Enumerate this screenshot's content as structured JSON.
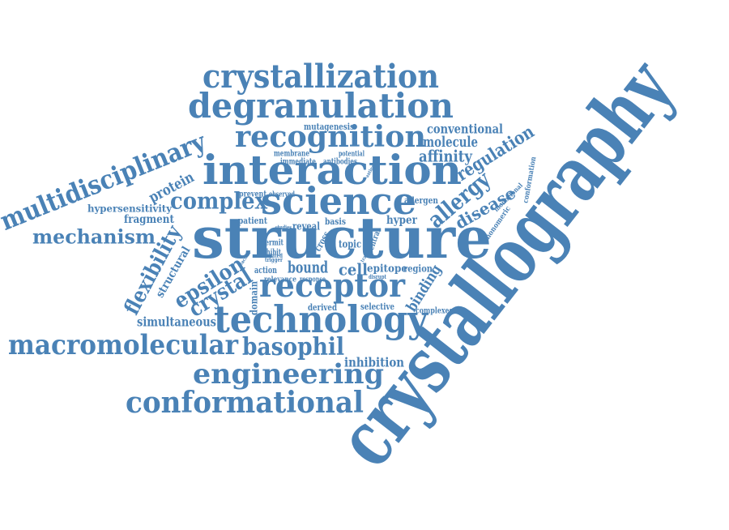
{
  "word_cloud": {
    "color": "#4a82b6",
    "words": {
      "crystallography": "crystallography",
      "structure": "structure",
      "interaction": "interaction",
      "technology": "technology",
      "receptor": "receptor",
      "degranulation": "degranulation",
      "crystallization": "crystallization",
      "recognition": "recognition",
      "science": "science",
      "multidisciplinary": "multidisciplinary",
      "macromolecular": "macromolecular",
      "conformational": "conformational",
      "engineering": "engineering",
      "basophil": "basophil",
      "mechanism": "mechanism",
      "complex": "complex",
      "flexibility": "flexibility",
      "allergy": "allergy",
      "regulation": "regulation",
      "disease": "disease",
      "epsilon": "epsilon",
      "crystal": "crystal",
      "bound": "bound",
      "binding": "binding",
      "protein": "protein",
      "affinity": "affinity",
      "molecule": "molecule",
      "conventional": "conventional",
      "simultaneous": "simultaneous",
      "inhibition": "inhibition",
      "structural": "structural",
      "fragment": "fragment",
      "hypersensitivity": "hypersensitivity",
      "mutagenesis": "mutagenesis",
      "cell": "cell",
      "reveal": "reveal",
      "epitope": "epitope",
      "region": "region",
      "hyper": "hyper",
      "allergen": "allergen",
      "patient": "patient",
      "domain": "domain",
      "selective": "selective",
      "complexes": "complexes",
      "derived": "derived",
      "topic": "topic",
      "basis": "basis",
      "action": "action",
      "monomeric": "monomeric",
      "conformation": "conformation",
      "monoclonal": "monoclonal",
      "prevent": "prevent",
      "observed": "observed",
      "membrane": "membrane",
      "potential": "potential",
      "immediate": "immediate",
      "antibodies": "antibodies",
      "permit": "permit",
      "inhibit": "inhibit",
      "relevance": "relevance",
      "response": "response",
      "cross": "cross",
      "central": "central",
      "trigger": "trigger",
      "related": "related",
      "studies": "studies",
      "reaction": "reaction",
      "disrupt": "disrupt",
      "trap": "trap",
      "antigen": "antigen"
    }
  }
}
